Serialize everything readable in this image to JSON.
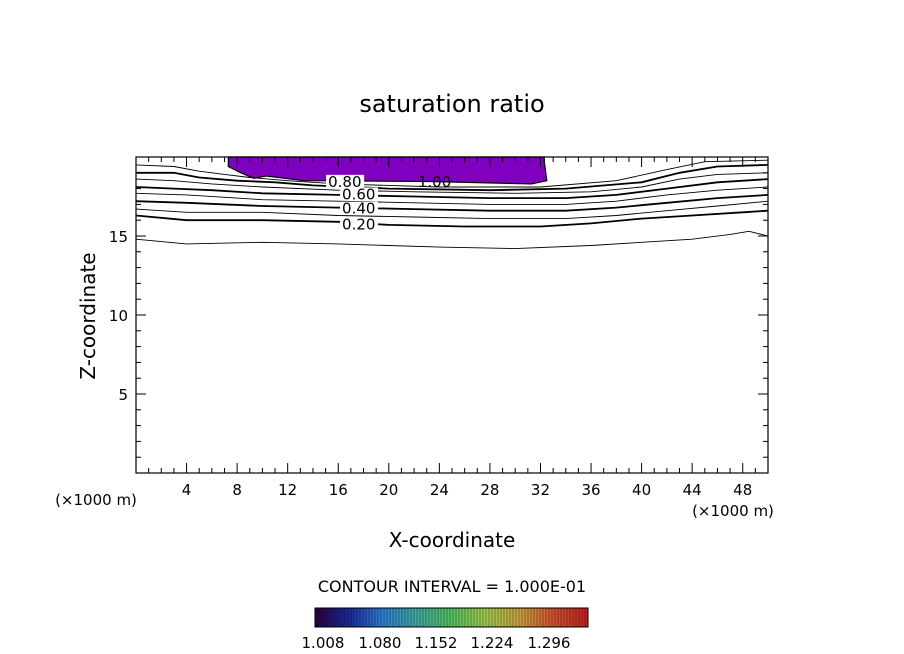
{
  "chart_data": {
    "type": "contour",
    "title": "saturation ratio",
    "xlabel": "X-coordinate",
    "ylabel": "Z-coordinate",
    "x_unit": "(×1000 m)",
    "xlim": [
      0,
      50
    ],
    "ylim": [
      0,
      20
    ],
    "x_ticks": [
      "4",
      "8",
      "12",
      "16",
      "20",
      "24",
      "28",
      "32",
      "36",
      "40",
      "44",
      "48"
    ],
    "y_ticks": [
      "5",
      "10",
      "15"
    ],
    "contour_interval_text": "CONTOUR INTERVAL = 1.000E-01",
    "contour_labels": [
      "0.20",
      "0.40",
      "0.60",
      "0.80",
      "1.00"
    ],
    "shaded_region": {
      "label": "1.00",
      "color": "#8000c0",
      "x_range": [
        7.3,
        32.3
      ],
      "z_range": [
        18.3,
        20
      ]
    },
    "colorbar": {
      "labels": [
        "1.008",
        "1.080",
        "1.152",
        "1.224",
        "1.296"
      ],
      "colors": [
        "#2a0040",
        "#1a2a9a",
        "#2f7fd0",
        "#3fa8a0",
        "#55c060",
        "#a0c850",
        "#c8a040",
        "#d05030",
        "#c02020"
      ]
    },
    "contours": [
      {
        "level": 0.1,
        "points": [
          [
            0,
            14.8
          ],
          [
            4,
            14.5
          ],
          [
            10,
            14.6
          ],
          [
            16,
            14.5
          ],
          [
            24,
            14.3
          ],
          [
            30,
            14.2
          ],
          [
            36,
            14.4
          ],
          [
            40,
            14.6
          ],
          [
            44,
            14.8
          ],
          [
            47,
            15.1
          ],
          [
            48.5,
            15.3
          ],
          [
            50,
            15.0
          ]
        ]
      },
      {
        "level": 0.2,
        "points": [
          [
            0,
            16.3
          ],
          [
            4,
            16.0
          ],
          [
            10,
            16.0
          ],
          [
            16,
            15.9
          ],
          [
            20,
            15.7
          ],
          [
            26,
            15.6
          ],
          [
            32,
            15.6
          ],
          [
            36,
            15.8
          ],
          [
            40,
            16.1
          ],
          [
            44,
            16.3
          ],
          [
            48,
            16.5
          ],
          [
            50,
            16.6
          ]
        ]
      },
      {
        "level": 0.3,
        "points": [
          [
            0,
            16.7
          ],
          [
            4,
            16.5
          ],
          [
            10,
            16.5
          ],
          [
            16,
            16.3
          ],
          [
            22,
            16.2
          ],
          [
            28,
            16.1
          ],
          [
            34,
            16.1
          ],
          [
            38,
            16.3
          ],
          [
            42,
            16.6
          ],
          [
            46,
            16.9
          ],
          [
            50,
            17.2
          ]
        ]
      },
      {
        "level": 0.4,
        "points": [
          [
            0,
            17.2
          ],
          [
            4,
            17.1
          ],
          [
            10,
            16.9
          ],
          [
            16,
            16.8
          ],
          [
            22,
            16.7
          ],
          [
            28,
            16.6
          ],
          [
            34,
            16.6
          ],
          [
            38,
            16.8
          ],
          [
            42,
            17.1
          ],
          [
            46,
            17.4
          ],
          [
            50,
            17.6
          ]
        ]
      },
      {
        "level": 0.5,
        "points": [
          [
            0,
            17.7
          ],
          [
            4,
            17.6
          ],
          [
            10,
            17.3
          ],
          [
            16,
            17.2
          ],
          [
            22,
            17.1
          ],
          [
            28,
            17.0
          ],
          [
            34,
            17.0
          ],
          [
            38,
            17.2
          ],
          [
            42,
            17.6
          ],
          [
            46,
            17.9
          ],
          [
            50,
            18.1
          ]
        ]
      },
      {
        "level": 0.6,
        "points": [
          [
            0,
            18.1
          ],
          [
            3,
            18.0
          ],
          [
            6,
            17.9
          ],
          [
            10,
            17.7
          ],
          [
            16,
            17.6
          ],
          [
            22,
            17.5
          ],
          [
            28,
            17.4
          ],
          [
            34,
            17.4
          ],
          [
            38,
            17.6
          ],
          [
            42,
            18.0
          ],
          [
            46,
            18.4
          ],
          [
            50,
            18.6
          ]
        ]
      },
      {
        "level": 0.7,
        "points": [
          [
            0,
            18.6
          ],
          [
            3,
            18.5
          ],
          [
            6,
            18.3
          ],
          [
            10,
            18.1
          ],
          [
            16,
            17.9
          ],
          [
            22,
            17.8
          ],
          [
            30,
            17.7
          ],
          [
            36,
            17.8
          ],
          [
            40,
            18.1
          ],
          [
            43,
            18.6
          ],
          [
            46,
            18.9
          ],
          [
            50,
            19.0
          ]
        ]
      },
      {
        "level": 0.8,
        "points": [
          [
            0,
            19.0
          ],
          [
            3,
            19.0
          ],
          [
            5,
            18.7
          ],
          [
            8,
            18.5
          ],
          [
            11,
            18.4
          ],
          [
            14,
            18.2
          ],
          [
            20,
            18.0
          ],
          [
            28,
            17.9
          ],
          [
            34,
            18.0
          ],
          [
            40,
            18.4
          ],
          [
            43,
            19.0
          ],
          [
            46,
            19.4
          ],
          [
            50,
            19.5
          ]
        ]
      },
      {
        "level": 0.9,
        "points": [
          [
            0,
            19.5
          ],
          [
            3,
            19.4
          ],
          [
            5,
            19.1
          ],
          [
            7,
            18.9
          ],
          [
            9,
            18.7
          ],
          [
            12,
            18.5
          ],
          [
            16,
            18.3
          ],
          [
            24,
            18.1
          ],
          [
            32,
            18.1
          ],
          [
            38,
            18.5
          ],
          [
            42,
            19.2
          ],
          [
            45,
            19.7
          ],
          [
            50,
            19.8
          ]
        ]
      }
    ]
  }
}
